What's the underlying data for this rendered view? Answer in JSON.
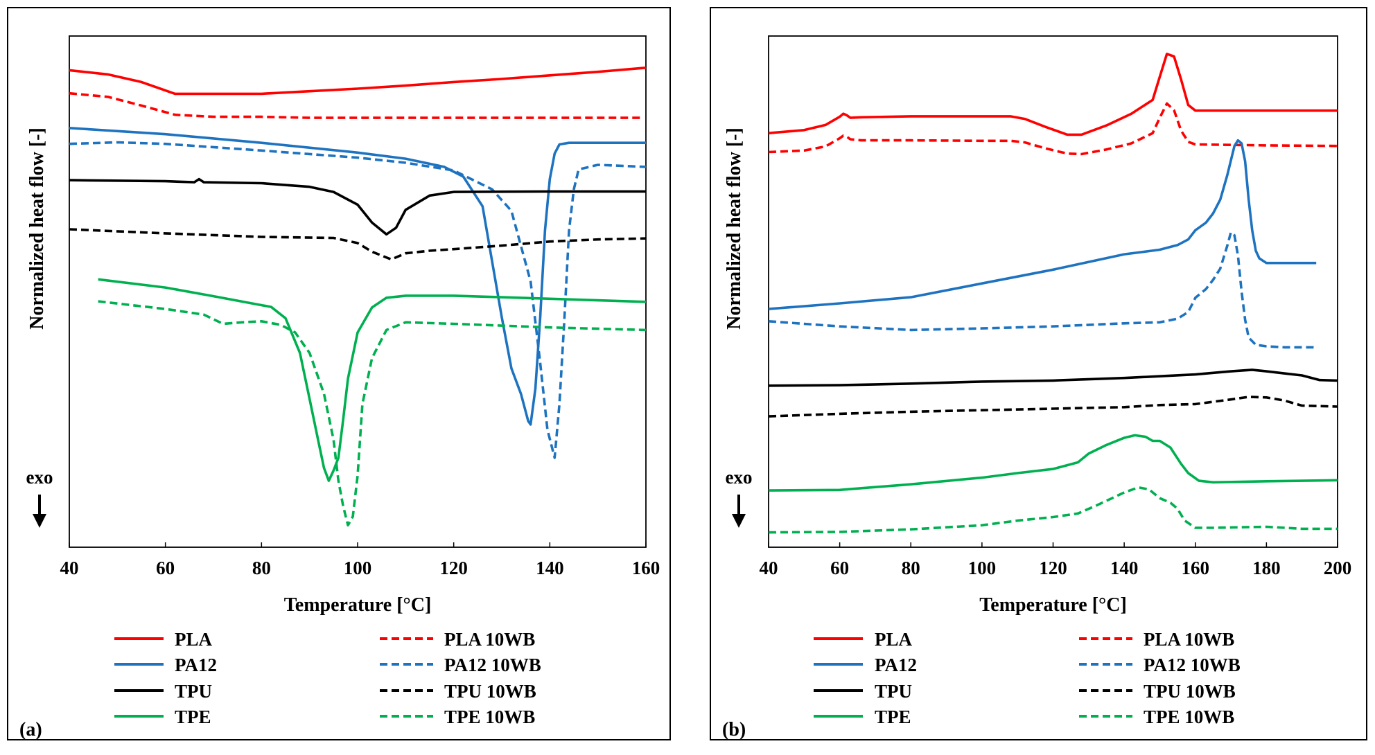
{
  "chart_data": [
    {
      "type": "line",
      "panel_label": "(a)",
      "xlabel": "Temperature [°C]",
      "ylabel": "Normalized heat flow [-]",
      "exo_label": "exo",
      "xlim": [
        40,
        160
      ],
      "ylim": [
        0,
        100
      ],
      "xticks": [
        "40",
        "60",
        "80",
        "100",
        "120",
        "140",
        "160"
      ],
      "xtick_values": [
        40,
        60,
        80,
        100,
        120,
        140,
        160
      ],
      "series": [
        {
          "name": "PLA",
          "color": "#ff0000",
          "dashed": false,
          "x": [
            40,
            48,
            55,
            62,
            70,
            80,
            90,
            100,
            110,
            120,
            130,
            140,
            150,
            160
          ],
          "y": [
            93.3,
            92.5,
            91.0,
            88.7,
            88.7,
            88.7,
            89.2,
            89.7,
            90.3,
            91.0,
            91.6,
            92.3,
            93.0,
            93.8
          ]
        },
        {
          "name": "PLA 10WB",
          "color": "#ff0000",
          "dashed": true,
          "x": [
            40,
            48,
            55,
            62,
            70,
            80,
            90,
            100,
            110,
            120,
            130,
            140,
            159
          ],
          "y": [
            88.8,
            88.1,
            86.4,
            84.6,
            84.2,
            84.2,
            84.0,
            84.0,
            84.0,
            84.0,
            84.0,
            84.0,
            84.0
          ]
        },
        {
          "name": "PA12",
          "color": "#1e73c0",
          "dashed": false,
          "x": [
            40,
            60,
            80,
            100,
            110,
            118,
            122,
            126,
            130,
            132,
            134,
            135.5,
            136,
            137,
            138,
            139,
            140,
            141,
            142,
            144,
            150,
            160
          ],
          "y": [
            82.0,
            80.8,
            79.1,
            77.2,
            76.0,
            74.4,
            72.5,
            66.7,
            45.0,
            35.0,
            30.0,
            24.7,
            24.0,
            31.0,
            45.0,
            62.0,
            72.0,
            77.0,
            78.8,
            79.1,
            79.1,
            79.1
          ]
        },
        {
          "name": "PA12 10WB",
          "color": "#1e73c0",
          "dashed": true,
          "x": [
            40,
            50,
            60,
            80,
            100,
            110,
            120,
            128,
            132,
            136,
            138,
            139.5,
            141,
            142,
            143,
            144,
            145,
            146,
            150,
            160
          ],
          "y": [
            78.9,
            79.2,
            78.9,
            77.6,
            76.2,
            75.2,
            73.7,
            70.0,
            65.8,
            52.0,
            36.0,
            23.0,
            17.5,
            28.0,
            44.0,
            62.0,
            70.0,
            73.9,
            74.8,
            74.4
          ]
        },
        {
          "name": "TPU",
          "color": "#000000",
          "dashed": false,
          "x": [
            40,
            60,
            66,
            67,
            68,
            80,
            90,
            95,
            100,
            103,
            106,
            108,
            110,
            115,
            120,
            140,
            160
          ],
          "y": [
            71.8,
            71.6,
            71.4,
            72.0,
            71.4,
            71.2,
            70.5,
            69.5,
            67.0,
            63.5,
            61.2,
            62.5,
            66.0,
            68.8,
            69.5,
            69.6,
            69.6
          ]
        },
        {
          "name": "TPU 10WB",
          "color": "#000000",
          "dashed": true,
          "x": [
            40,
            60,
            80,
            95,
            100,
            103,
            107,
            110,
            115,
            120,
            130,
            140,
            150,
            160
          ],
          "y": [
            62.2,
            61.4,
            60.7,
            60.5,
            59.5,
            57.8,
            56.3,
            57.5,
            58.0,
            58.3,
            59.0,
            59.8,
            60.2,
            60.4
          ]
        },
        {
          "name": "TPE",
          "color": "#00b050",
          "dashed": false,
          "x": [
            46,
            60,
            70,
            78,
            82,
            85,
            88,
            90,
            92,
            93,
            94,
            95,
            96,
            97,
            98,
            100,
            103,
            106,
            110,
            120,
            140,
            160
          ],
          "y": [
            52.4,
            50.8,
            49.1,
            47.7,
            47.0,
            44.8,
            38.0,
            29.0,
            20.0,
            15.5,
            13.0,
            15.0,
            17.5,
            25.0,
            33.0,
            42.0,
            46.9,
            48.8,
            49.2,
            49.2,
            48.6,
            48.0
          ]
        },
        {
          "name": "TPE 10WB",
          "color": "#00b050",
          "dashed": true,
          "x": [
            46,
            60,
            68,
            72,
            76,
            80,
            84,
            87,
            90,
            93,
            95,
            96,
            97,
            98,
            99,
            100,
            101,
            103,
            106,
            110,
            120,
            140,
            160
          ],
          "y": [
            48.1,
            46.6,
            45.5,
            43.7,
            44.0,
            44.2,
            43.5,
            42.0,
            38.0,
            30.0,
            21.0,
            13.0,
            8.0,
            4.3,
            6.0,
            14.0,
            28.0,
            37.0,
            42.5,
            44.0,
            43.7,
            43.0,
            42.5
          ]
        }
      ],
      "legend": [
        {
          "label": "PLA",
          "color": "#ff0000",
          "dashed": false
        },
        {
          "label": "PLA 10WB",
          "color": "#ff0000",
          "dashed": true
        },
        {
          "label": "PA12",
          "color": "#1e73c0",
          "dashed": false
        },
        {
          "label": "PA12 10WB",
          "color": "#1e73c0",
          "dashed": true
        },
        {
          "label": "TPU",
          "color": "#000000",
          "dashed": false
        },
        {
          "label": "TPU 10WB",
          "color": "#000000",
          "dashed": true
        },
        {
          "label": "TPE",
          "color": "#00b050",
          "dashed": false
        },
        {
          "label": "TPE 10WB",
          "color": "#00b050",
          "dashed": true
        }
      ]
    },
    {
      "type": "line",
      "panel_label": "(b)",
      "xlabel": "Temperature [°C]",
      "ylabel": "Normalized heat flow [-]",
      "exo_label": "exo",
      "xlim": [
        40,
        200
      ],
      "ylim": [
        0,
        100
      ],
      "xticks": [
        "40",
        "60",
        "80",
        "100",
        "120",
        "140",
        "160",
        "180",
        "200"
      ],
      "xtick_values": [
        40,
        60,
        80,
        100,
        120,
        140,
        160,
        180,
        200
      ],
      "series": [
        {
          "name": "PLA",
          "color": "#ff0000",
          "dashed": false,
          "x": [
            40,
            50,
            56,
            60,
            61,
            62,
            63,
            66,
            80,
            100,
            108,
            112,
            118,
            124,
            128,
            135,
            142,
            148,
            150,
            152,
            154,
            156,
            158,
            160,
            180,
            200
          ],
          "y": [
            81.0,
            81.6,
            82.6,
            84.2,
            84.8,
            84.5,
            84.0,
            84.1,
            84.3,
            84.3,
            84.3,
            83.8,
            82.2,
            80.7,
            80.7,
            82.5,
            84.8,
            87.5,
            92.0,
            96.5,
            96.0,
            91.5,
            86.5,
            85.4,
            85.4,
            85.4
          ]
        },
        {
          "name": "PLA 10WB",
          "color": "#ff0000",
          "dashed": true,
          "x": [
            40,
            50,
            56,
            60,
            61,
            62,
            63,
            66,
            80,
            100,
            108,
            112,
            118,
            124,
            128,
            135,
            142,
            148,
            150,
            152,
            154,
            156,
            158,
            160,
            180,
            200
          ],
          "y": [
            77.3,
            77.6,
            78.4,
            80.0,
            80.5,
            80.3,
            79.8,
            79.6,
            79.6,
            79.5,
            79.5,
            79.2,
            78.0,
            77.0,
            76.9,
            77.8,
            79.0,
            81.0,
            84.0,
            86.8,
            85.5,
            81.5,
            79.3,
            78.8,
            78.6,
            78.5
          ]
        },
        {
          "name": "PA12",
          "color": "#1e73c0",
          "dashed": false,
          "x": [
            40,
            60,
            80,
            100,
            120,
            140,
            150,
            155,
            158,
            160,
            163,
            165,
            167,
            169,
            171,
            172,
            173,
            174,
            175,
            176,
            177,
            178,
            180,
            185,
            190,
            194
          ],
          "y": [
            46.6,
            47.7,
            48.9,
            51.6,
            54.3,
            57.3,
            58.2,
            59.1,
            60.2,
            62.0,
            63.5,
            65.3,
            68.0,
            72.8,
            78.5,
            79.6,
            79.0,
            75.5,
            68.0,
            62.0,
            58.0,
            56.5,
            55.6,
            55.6,
            55.6,
            55.6
          ]
        },
        {
          "name": "PA12 10WB",
          "color": "#1e73c0",
          "dashed": true,
          "x": [
            40,
            50,
            60,
            80,
            100,
            120,
            140,
            150,
            155,
            158,
            160,
            163,
            165,
            167,
            169,
            170,
            171,
            172,
            173,
            174,
            175,
            177,
            180,
            185,
            190,
            194
          ],
          "y": [
            44.2,
            43.7,
            43.2,
            42.5,
            42.8,
            43.2,
            43.8,
            44.0,
            44.7,
            46.0,
            48.8,
            50.5,
            52.3,
            54.5,
            59.0,
            61.6,
            61.0,
            57.0,
            50.0,
            44.5,
            41.0,
            39.6,
            39.3,
            39.1,
            39.1,
            39.1
          ]
        },
        {
          "name": "TPU",
          "color": "#000000",
          "dashed": false,
          "x": [
            40,
            60,
            80,
            100,
            120,
            140,
            160,
            170,
            176,
            180,
            185,
            190,
            195,
            200
          ],
          "y": [
            31.6,
            31.7,
            32.0,
            32.4,
            32.6,
            33.1,
            33.8,
            34.4,
            34.7,
            34.4,
            34.0,
            33.6,
            32.7,
            32.6
          ]
        },
        {
          "name": "TPU 10WB",
          "color": "#000000",
          "dashed": true,
          "x": [
            40,
            60,
            80,
            100,
            120,
            140,
            150,
            160,
            170,
            175,
            180,
            185,
            190,
            200
          ],
          "y": [
            25.6,
            26.1,
            26.5,
            26.8,
            27.1,
            27.4,
            27.8,
            28.0,
            28.9,
            29.4,
            29.3,
            28.7,
            27.7,
            27.5
          ]
        },
        {
          "name": "TPE",
          "color": "#00b050",
          "dashed": false,
          "x": [
            40,
            60,
            80,
            100,
            110,
            120,
            127,
            130,
            135,
            140,
            143,
            146,
            148,
            150,
            153,
            156,
            158,
            161,
            165,
            180,
            200
          ],
          "y": [
            11.1,
            11.2,
            12.3,
            13.6,
            14.5,
            15.3,
            16.6,
            18.3,
            20.0,
            21.4,
            21.9,
            21.6,
            20.8,
            20.8,
            19.5,
            16.3,
            14.5,
            13.0,
            12.7,
            12.9,
            13.1
          ]
        },
        {
          "name": "TPE 10WB",
          "color": "#00b050",
          "dashed": true,
          "x": [
            40,
            60,
            80,
            100,
            110,
            120,
            127,
            132,
            136,
            140,
            144,
            147,
            150,
            153,
            155,
            157,
            160,
            165,
            180,
            190,
            200
          ],
          "y": [
            2.9,
            3.0,
            3.5,
            4.3,
            5.2,
            5.9,
            6.6,
            8.1,
            9.4,
            10.7,
            11.7,
            11.3,
            9.6,
            8.7,
            7.5,
            5.2,
            3.8,
            3.8,
            4.0,
            3.6,
            3.6
          ]
        }
      ],
      "legend": [
        {
          "label": "PLA",
          "color": "#ff0000",
          "dashed": false
        },
        {
          "label": "PLA 10WB",
          "color": "#ff0000",
          "dashed": true
        },
        {
          "label": "PA12",
          "color": "#1e73c0",
          "dashed": false
        },
        {
          "label": "PA12 10WB",
          "color": "#1e73c0",
          "dashed": true
        },
        {
          "label": "TPU",
          "color": "#000000",
          "dashed": false
        },
        {
          "label": "TPU 10WB",
          "color": "#000000",
          "dashed": true
        },
        {
          "label": "TPE",
          "color": "#00b050",
          "dashed": false
        },
        {
          "label": "TPE 10WB",
          "color": "#00b050",
          "dashed": true
        }
      ]
    }
  ]
}
